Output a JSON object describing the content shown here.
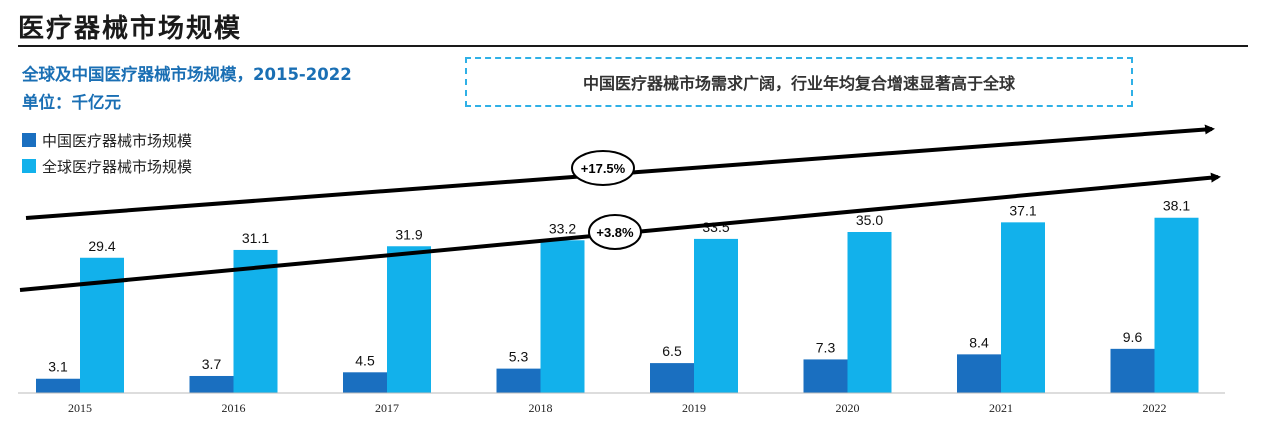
{
  "header": {
    "title": "医疗器械市场规模",
    "chart_title": "全球及中国医疗器械市场规模，2015-2022",
    "unit": "单位：千亿元",
    "callout": "中国医疗器械市场需求广阔，行业年均复合增速显著高于全球"
  },
  "colors": {
    "china": "#1a6fc0",
    "global": "#12b1eb"
  },
  "chart_data": {
    "type": "bar",
    "categories": [
      "2015",
      "2016",
      "2017",
      "2018",
      "2019",
      "2020",
      "2021",
      "2022"
    ],
    "series": [
      {
        "name": "中国医疗器械市场规模",
        "values": [
          3.1,
          3.7,
          4.5,
          5.3,
          6.5,
          7.3,
          8.4,
          9.6
        ]
      },
      {
        "name": "全球医疗器械市场规模",
        "values": [
          29.4,
          31.1,
          31.9,
          33.2,
          33.5,
          35.0,
          37.1,
          38.1
        ]
      }
    ],
    "value_labels": [
      [
        "3.1",
        "3.7",
        "4.5",
        "5.3",
        "6.5",
        "7.3",
        "8.4",
        "9.6"
      ],
      [
        "29.4",
        "31.1",
        "31.9",
        "33.2",
        "33.5",
        "35.0",
        "37.1",
        "38.1"
      ]
    ],
    "annotations": [
      "+17.5%",
      "+3.8%"
    ],
    "legend_position": "top-left",
    "grid": false
  }
}
